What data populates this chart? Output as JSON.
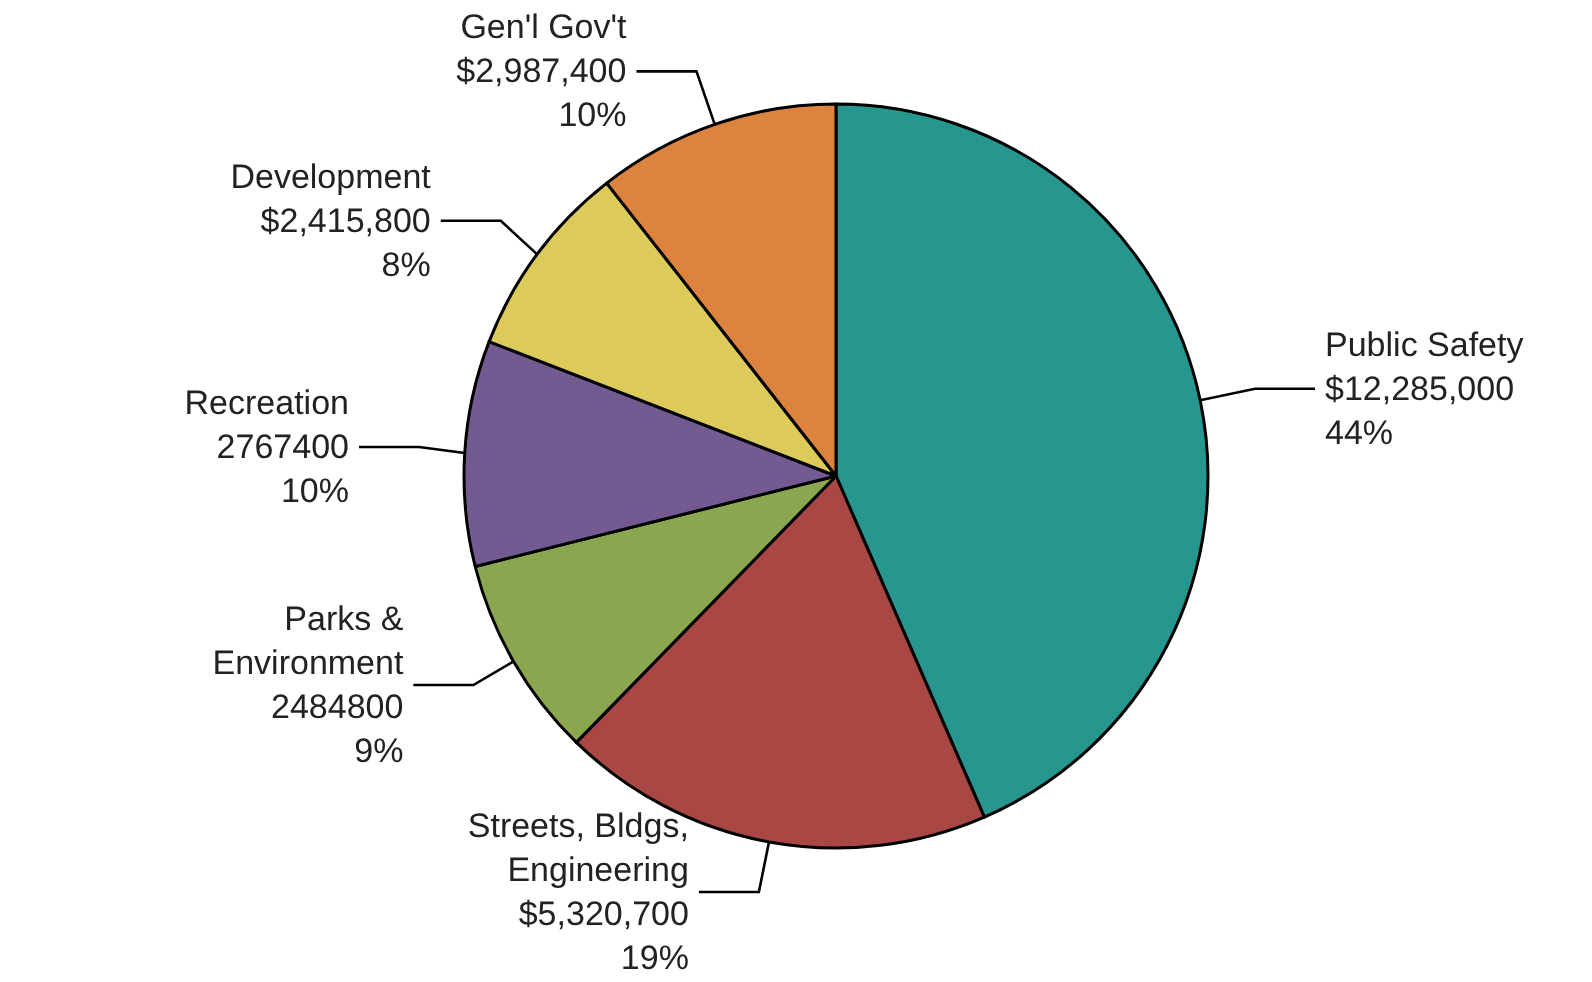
{
  "chart_data": {
    "type": "pie",
    "categories": [
      "Public Safety",
      "Streets, Bldgs, Engineering",
      "Parks & Environment",
      "Recreation",
      "Development",
      "Gen'l Gov't"
    ],
    "values": [
      12285000,
      5320700,
      2484800,
      2767400,
      2415800,
      2987400
    ],
    "value_labels": [
      "$12,285,000\n44%",
      "$5,320,700\n19%",
      "2484800\n9%",
      "2767400\n10%",
      "$2,415,800\n8%",
      "$2,987,400\n10%"
    ],
    "colors": [
      "#26968f",
      "#a84744",
      "#8aa64f",
      "#735a91",
      "#dccb5a",
      "#dc843f"
    ]
  }
}
